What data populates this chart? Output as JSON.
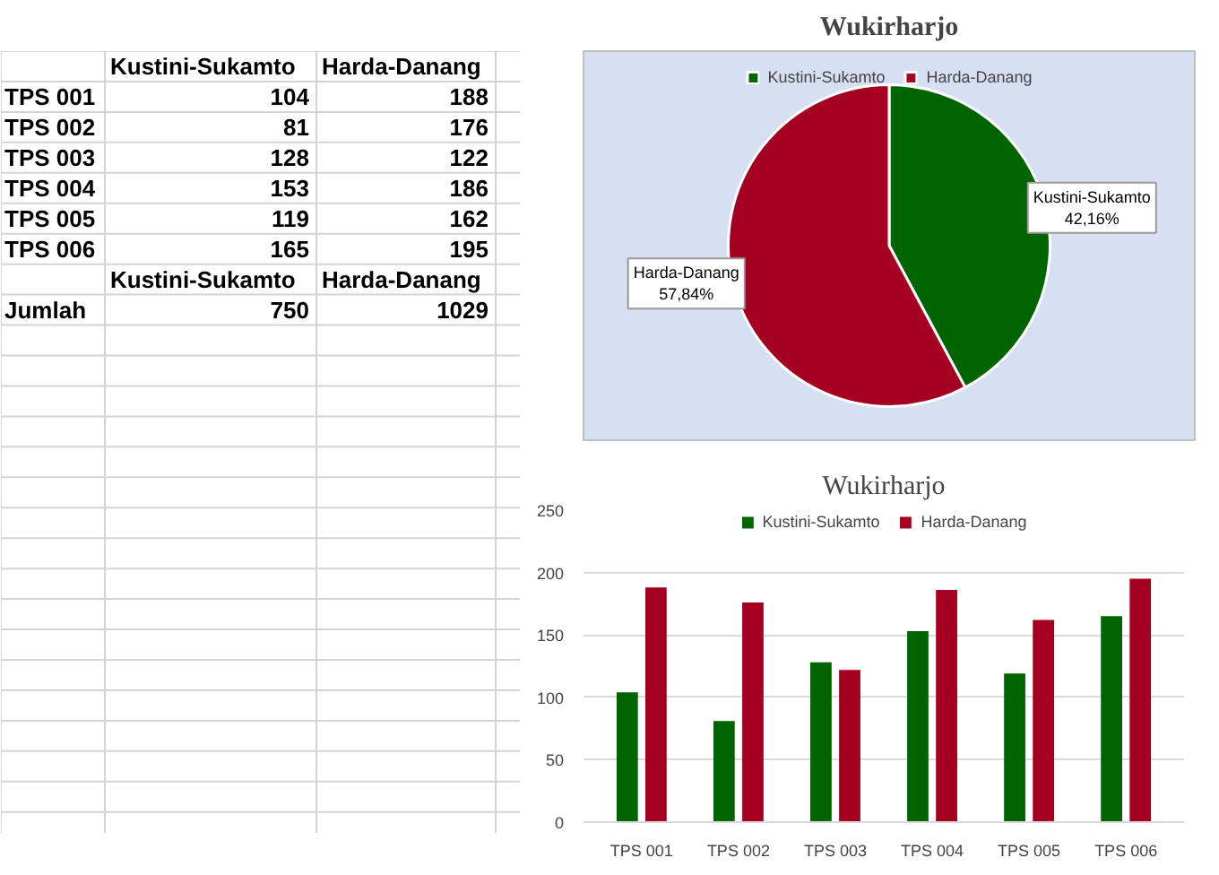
{
  "chart_data": [
    {
      "type": "other",
      "data_labels": true,
      "categories": [
        "TPS 001",
        "TPS 002",
        "TPS 003",
        "TPS 004",
        "TPS 005",
        "TPS 006",
        "Jumlah"
      ],
      "series": [
        {
          "name": "Kustini-Sukamto",
          "values": [
            104,
            81,
            128,
            153,
            119,
            165,
            750
          ]
        },
        {
          "name": "Harda-Danang",
          "values": [
            188,
            176,
            122,
            186,
            162,
            195,
            1029
          ]
        }
      ]
    },
    {
      "type": "pie",
      "title": "Wukirharjo",
      "categories": [
        "Kustini-Sukamto",
        "Harda-Danang"
      ],
      "values": [
        42.16,
        57.84
      ],
      "colors": [
        "#006400",
        "#a50021"
      ],
      "value_labels": [
        "42,16%",
        "57,84%"
      ],
      "legend": "top"
    },
    {
      "type": "bar",
      "title": "Wukirharjo",
      "categories": [
        "TPS 001",
        "TPS 002",
        "TPS 003",
        "TPS 004",
        "TPS 005",
        "TPS 006"
      ],
      "series": [
        {
          "name": "Kustini-Sukamto",
          "color": "#006400",
          "values": [
            104,
            81,
            128,
            153,
            119,
            165
          ]
        },
        {
          "name": "Harda-Danang",
          "color": "#a50021",
          "values": [
            188,
            176,
            122,
            186,
            162,
            195
          ]
        }
      ],
      "ylim": [
        0,
        250
      ],
      "yticks": [
        0,
        50,
        100,
        150,
        200,
        250
      ],
      "grid": "y",
      "legend": "top"
    }
  ]
}
